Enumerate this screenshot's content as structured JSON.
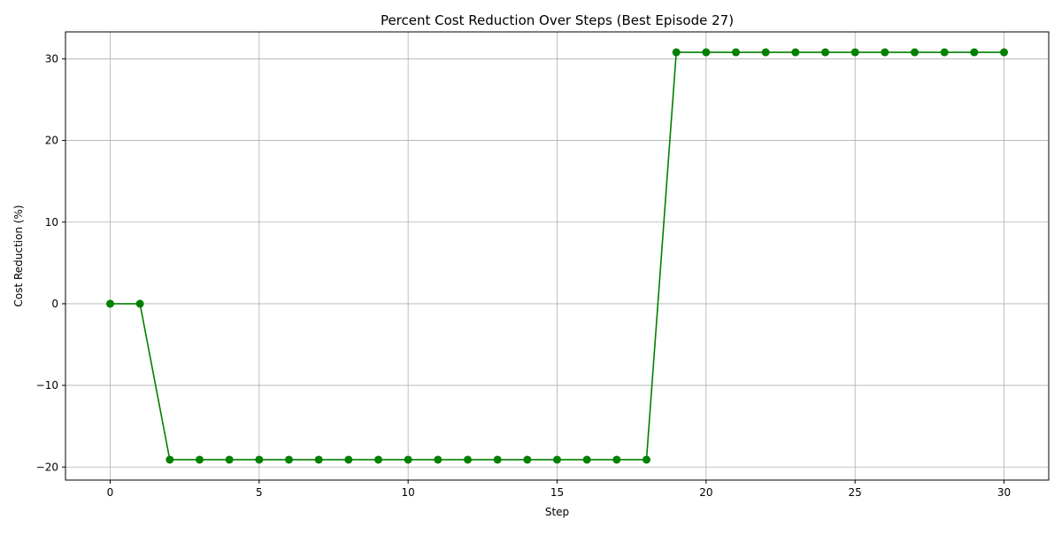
{
  "chart_data": {
    "type": "line",
    "title": "Percent Cost Reduction Over Steps (Best Episode 27)",
    "xlabel": "Step",
    "ylabel": "Cost Reduction (%)",
    "xlim": [
      -1.5,
      31.5
    ],
    "ylim": [
      -21.6,
      33.3
    ],
    "xticks": [
      0,
      5,
      10,
      15,
      20,
      25,
      30
    ],
    "xtick_labels": [
      "0",
      "5",
      "10",
      "15",
      "20",
      "25",
      "30"
    ],
    "yticks": [
      -20,
      -10,
      0,
      10,
      20,
      30
    ],
    "ytick_labels": [
      "−20",
      "−10",
      "0",
      "10",
      "20",
      "30"
    ],
    "grid": true,
    "series": [
      {
        "name": "Cost Reduction",
        "color": "#008000",
        "marker": "circle",
        "x": [
          0,
          1,
          2,
          3,
          4,
          5,
          6,
          7,
          8,
          9,
          10,
          11,
          12,
          13,
          14,
          15,
          16,
          17,
          18,
          19,
          20,
          21,
          22,
          23,
          24,
          25,
          26,
          27,
          28,
          29,
          30
        ],
        "values": [
          0,
          0,
          -19.1,
          -19.1,
          -19.1,
          -19.1,
          -19.1,
          -19.1,
          -19.1,
          -19.1,
          -19.1,
          -19.1,
          -19.1,
          -19.1,
          -19.1,
          -19.1,
          -19.1,
          -19.1,
          -19.1,
          30.8,
          30.8,
          30.8,
          30.8,
          30.8,
          30.8,
          30.8,
          30.8,
          30.8,
          30.8,
          30.8,
          30.8
        ]
      }
    ]
  }
}
